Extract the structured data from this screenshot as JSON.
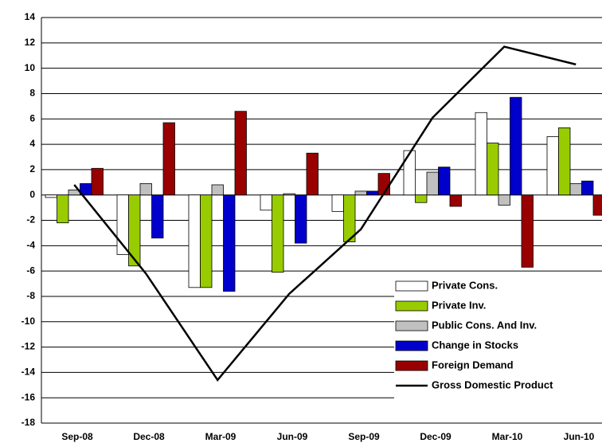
{
  "chart_data": {
    "type": "bar",
    "categories": [
      "Sep-08",
      "Dec-08",
      "Mar-09",
      "Jun-09",
      "Sep-09",
      "Dec-09",
      "Mar-10",
      "Jun-10"
    ],
    "series": [
      {
        "name": "Private Cons.",
        "color": "#ffffff",
        "values": [
          -0.2,
          -4.7,
          -7.3,
          -1.2,
          -1.3,
          3.5,
          6.5,
          4.6
        ]
      },
      {
        "name": "Private Inv.",
        "color": "#99cc00",
        "values": [
          -2.2,
          -5.6,
          -7.3,
          -6.1,
          -3.7,
          -0.6,
          4.1,
          5.3
        ]
      },
      {
        "name": "Public Cons. And Inv.",
        "color": "#c0c0c0",
        "values": [
          0.4,
          0.9,
          0.8,
          0.1,
          0.3,
          1.8,
          -0.8,
          0.9
        ]
      },
      {
        "name": "Change in Stocks",
        "color": "#0000cc",
        "values": [
          0.9,
          -3.4,
          -7.6,
          -3.8,
          0.3,
          2.2,
          7.7,
          1.1
        ]
      },
      {
        "name": "Foreign Demand",
        "color": "#990000",
        "values": [
          2.1,
          5.7,
          6.6,
          3.3,
          1.7,
          -0.9,
          -5.7,
          -1.6
        ]
      },
      {
        "name": "Gross Domestic Product",
        "color": "#000000",
        "type": "line",
        "values": [
          0.8,
          -6.2,
          -14.6,
          -7.8,
          -2.7,
          6.1,
          11.7,
          10.3
        ]
      }
    ],
    "ylim": [
      -18,
      14
    ],
    "yticks": [
      -18,
      -16,
      -14,
      -12,
      -10,
      -8,
      -6,
      -4,
      -2,
      0,
      2,
      4,
      6,
      8,
      10,
      12,
      14
    ],
    "grid": true,
    "legend": "lower right"
  }
}
